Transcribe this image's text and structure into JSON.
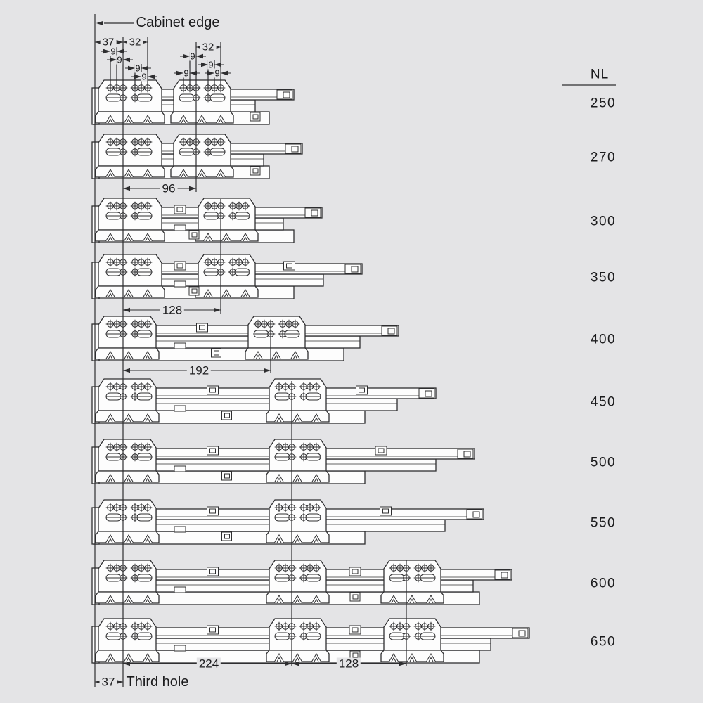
{
  "labels": {
    "cabinet_edge": "Cabinet edge",
    "third_hole": "Third hole",
    "nl_header": "NL"
  },
  "colors": {
    "background": "#e4e4e6",
    "line": "#2e2e30",
    "part_fill": "#fdfdfd",
    "text": "#1b1b1d"
  },
  "dims": {
    "front_offset": {
      "value": "37"
    },
    "front_pitch": {
      "value": "32"
    },
    "front_nine_1": {
      "value": "9"
    },
    "front_nine_2": {
      "value": "9"
    },
    "front_nine_3": {
      "value": "9"
    },
    "front_nine_4": {
      "value": "9"
    },
    "mid_pitch": {
      "value": "32"
    },
    "mid_nine_1": {
      "value": "9"
    },
    "mid_nine_2": {
      "value": "9"
    },
    "mid_nine_3": {
      "value": "9"
    },
    "mid_nine_4": {
      "value": "9"
    },
    "hole_spacing_96": {
      "value": "96"
    },
    "hole_spacing_128_mid": {
      "value": "128"
    },
    "hole_spacing_192": {
      "value": "192"
    },
    "hole_spacing_224": {
      "value": "224"
    },
    "hole_spacing_128_bot": {
      "value": "128"
    },
    "bottom_offset_37": {
      "value": "37"
    }
  },
  "rows": [
    {
      "nl": "250",
      "mid_bracket_holes": [
        279
      ],
      "rail_end": 418,
      "wide_front": true
    },
    {
      "nl": "270",
      "mid_bracket_holes": [
        279
      ],
      "rail_end": 430,
      "wide_front": true
    },
    {
      "nl": "300",
      "mid_bracket_holes": [
        314
      ],
      "rail_end": 458,
      "wide_front": true
    },
    {
      "nl": "350",
      "mid_bracket_holes": [
        314
      ],
      "rail_end": 515,
      "wide_front": true
    },
    {
      "nl": "400",
      "mid_bracket_holes": [
        385
      ],
      "rail_end": 567,
      "wide_front": false
    },
    {
      "nl": "450",
      "mid_bracket_holes": [
        415
      ],
      "rail_end": 620,
      "wide_front": false
    },
    {
      "nl": "500",
      "mid_bracket_holes": [
        415
      ],
      "rail_end": 675,
      "wide_front": false
    },
    {
      "nl": "550",
      "mid_bracket_holes": [
        415
      ],
      "rail_end": 688,
      "wide_front": false
    },
    {
      "nl": "600",
      "mid_bracket_holes": [
        415,
        578
      ],
      "rail_end": 728,
      "wide_front": false
    },
    {
      "nl": "650",
      "mid_bracket_holes": [
        415,
        578
      ],
      "rail_end": 753,
      "wide_front": false
    }
  ]
}
